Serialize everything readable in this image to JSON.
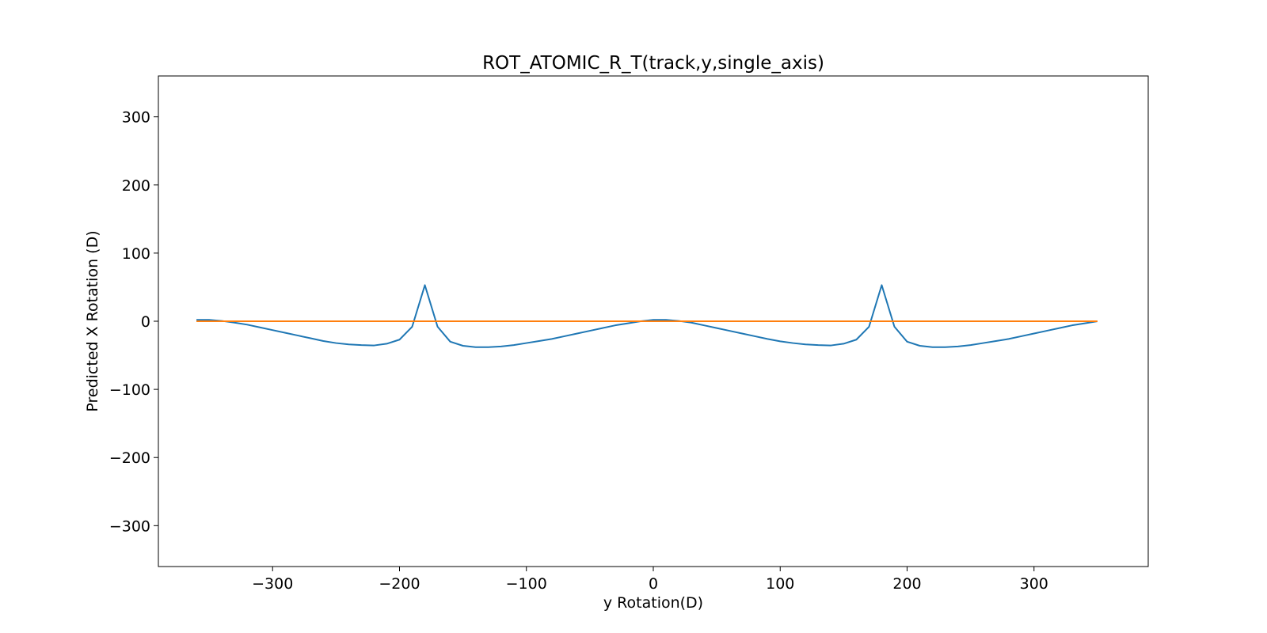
{
  "chart_data": {
    "type": "line",
    "title": "ROT_ATOMIC_R_T(track,y,single_axis)",
    "xlabel": "y Rotation(D)",
    "ylabel": "Predicted X Rotation (D)",
    "xlim": [
      -390,
      390
    ],
    "ylim": [
      -360,
      360
    ],
    "xticks": [
      -300,
      -200,
      -100,
      0,
      100,
      200,
      300
    ],
    "yticks": [
      -300,
      -200,
      -100,
      0,
      100,
      200,
      300
    ],
    "xtick_labels": [
      "−300",
      "−200",
      "−100",
      "0",
      "100",
      "200",
      "300"
    ],
    "ytick_labels": [
      "−300",
      "−200",
      "−100",
      "0",
      "100",
      "200",
      "300"
    ],
    "grid": false,
    "series": [
      {
        "color": "#1f77b4",
        "x": [
          -360,
          -350,
          -340,
          -330,
          -320,
          -310,
          -300,
          -290,
          -280,
          -270,
          -260,
          -250,
          -240,
          -230,
          -220,
          -210,
          -200,
          -190,
          -180,
          -170,
          -160,
          -150,
          -140,
          -130,
          -120,
          -110,
          -100,
          -90,
          -80,
          -70,
          -60,
          -50,
          -40,
          -30,
          -20,
          -10,
          0,
          10,
          20,
          30,
          40,
          50,
          60,
          70,
          80,
          90,
          100,
          110,
          120,
          130,
          140,
          150,
          160,
          170,
          180,
          190,
          200,
          210,
          220,
          230,
          240,
          250,
          260,
          270,
          280,
          290,
          300,
          310,
          320,
          330,
          340,
          350
        ],
        "values": [
          2,
          2,
          0.5,
          -2,
          -5,
          -9,
          -13,
          -17,
          -21,
          -25,
          -29,
          -32,
          -34,
          -35,
          -35.5,
          -33,
          -27,
          -8,
          53,
          -8,
          -30,
          -36,
          -38,
          -38,
          -37,
          -35,
          -32,
          -29,
          -26,
          -22,
          -18,
          -14,
          -10,
          -6,
          -3,
          0,
          2,
          2,
          0.5,
          -2,
          -6,
          -10,
          -14,
          -18,
          -22,
          -26,
          -29.5,
          -32,
          -34,
          -35,
          -35.5,
          -33,
          -27,
          -8,
          53,
          -8,
          -30,
          -36,
          -38,
          -38,
          -37,
          -35,
          -32,
          -29,
          -26,
          -22,
          -18,
          -14,
          -10,
          -6,
          -3,
          0
        ]
      },
      {
        "color": "#ff7f0e",
        "x": [
          -360,
          350
        ],
        "values": [
          0,
          0
        ]
      }
    ]
  }
}
